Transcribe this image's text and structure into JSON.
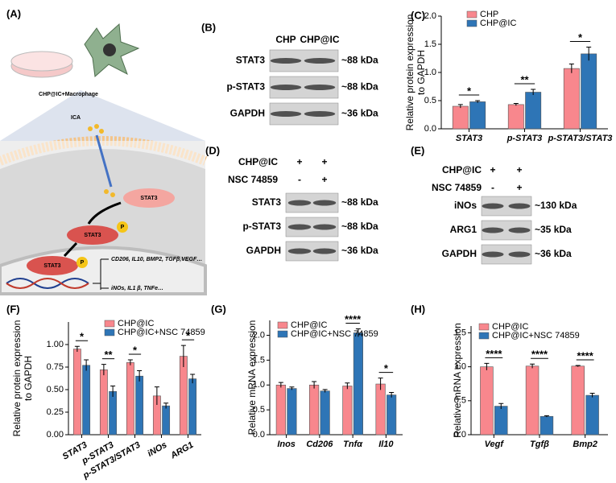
{
  "figure": {
    "panel_a": {
      "label": "(A)",
      "dish_label": "CHP@IC+Macrophage",
      "drug": "ICA",
      "protein": "STAT3",
      "phospho": "P",
      "upregulated": "CD206, IL10, BMP2, TGFβ,VEGF…",
      "downregulated": "iNOs, IL1 β, TNFe…"
    },
    "panel_b": {
      "label": "(B)",
      "lanes": [
        "CHP",
        "CHP@IC"
      ],
      "rows": [
        {
          "name": "STAT3",
          "size": "~88 kDa"
        },
        {
          "name": "p-STAT3",
          "size": "~88 kDa"
        },
        {
          "name": "GAPDH",
          "size": "~36 kDa"
        }
      ]
    },
    "panel_d": {
      "label": "(D)",
      "conditions": [
        {
          "name": "CHP@IC",
          "lanes": [
            "+",
            "+"
          ]
        },
        {
          "name": "NSC 74859",
          "lanes": [
            "-",
            "+"
          ]
        }
      ],
      "rows": [
        {
          "name": "STAT3",
          "size": "~88 kDa"
        },
        {
          "name": "p-STAT3",
          "size": "~88 kDa"
        },
        {
          "name": "GAPDH",
          "size": "~36 kDa"
        }
      ]
    },
    "panel_e": {
      "label": "(E)",
      "conditions": [
        {
          "name": "CHP@IC",
          "lanes": [
            "+",
            "+"
          ]
        },
        {
          "name": "NSC 74859",
          "lanes": [
            "-",
            "+"
          ]
        }
      ],
      "rows": [
        {
          "name": "iNOs",
          "size": "~130 kDa"
        },
        {
          "name": "ARG1",
          "size": "~35 kDa"
        },
        {
          "name": "GAPDH",
          "size": "~36 kDa"
        }
      ]
    }
  },
  "chart_data": [
    {
      "type": "bar",
      "panel": "(C)",
      "ylabel": [
        "Relative protein expression",
        "to GAPDH"
      ],
      "italic_categories": true,
      "rotated_categories": false,
      "categories": [
        "STAT3",
        "p-STAT3",
        "p-STAT3/STAT3"
      ],
      "series": [
        {
          "name": "CHP",
          "color": "#f8878d",
          "values": [
            0.4,
            0.43,
            1.07
          ],
          "errors": [
            0.03,
            0.02,
            0.08
          ]
        },
        {
          "name": "CHP@IC",
          "color": "#2e75b6",
          "values": [
            0.48,
            0.65,
            1.33
          ],
          "errors": [
            0.02,
            0.05,
            0.12
          ]
        }
      ],
      "ylim": [
        0,
        2.0
      ],
      "yticks": [
        {
          "value": 0,
          "label": "0.0"
        },
        {
          "value": 0.5,
          "label": "0.5"
        },
        {
          "value": 1.0,
          "label": "1.0"
        },
        {
          "value": 1.5,
          "label": "1.5"
        },
        {
          "value": 2.0,
          "label": "2.0"
        }
      ],
      "significance": [
        {
          "index": 0,
          "text": "*"
        },
        {
          "index": 1,
          "text": "**"
        },
        {
          "index": 2,
          "text": "*"
        }
      ]
    },
    {
      "type": "bar",
      "panel": "(F)",
      "ylabel": [
        "Relative protein expression",
        "to GAPDH"
      ],
      "italic_categories": true,
      "rotated_categories": true,
      "categories": [
        "STAT3",
        "p-STAT3",
        "p-STAT3/STAT3",
        "iNOs",
        "ARG1"
      ],
      "series": [
        {
          "name": "CHP@IC",
          "color": "#f8878d",
          "values": [
            0.95,
            0.72,
            0.8,
            0.43,
            0.87
          ],
          "errors": [
            0.03,
            0.06,
            0.03,
            0.1,
            0.12
          ]
        },
        {
          "name": "CHP@IC+NSC 74859",
          "color": "#2e75b6",
          "values": [
            0.77,
            0.48,
            0.65,
            0.32,
            0.62
          ],
          "errors": [
            0.06,
            0.06,
            0.06,
            0.03,
            0.05
          ]
        }
      ],
      "ylim": [
        0,
        1.25
      ],
      "yticks": [
        {
          "value": 0,
          "label": "0.00"
        },
        {
          "value": 0.25,
          "label": "0.25"
        },
        {
          "value": 0.5,
          "label": "0.50"
        },
        {
          "value": 0.75,
          "label": "0.75"
        },
        {
          "value": 1.0,
          "label": "1.00"
        }
      ],
      "significance": [
        {
          "index": 0,
          "text": "*"
        },
        {
          "index": 1,
          "text": "**"
        },
        {
          "index": 2,
          "text": "*"
        },
        {
          "index": 4,
          "text": "*"
        }
      ]
    },
    {
      "type": "bar",
      "panel": "(G)",
      "ylabel": [
        "Relative mRNA expression"
      ],
      "italic_categories": true,
      "rotated_categories": false,
      "categories": [
        "Inos",
        "Cd206",
        "Tnfα",
        "Il10"
      ],
      "series": [
        {
          "name": "CHP@IC",
          "color": "#f8878d",
          "values": [
            1.0,
            1.0,
            0.98,
            1.02
          ],
          "errors": [
            0.05,
            0.07,
            0.06,
            0.12
          ]
        },
        {
          "name": "CHP@IC+NSC 74859",
          "color": "#2e75b6",
          "values": [
            0.93,
            0.88,
            2.05,
            0.8
          ],
          "errors": [
            0.03,
            0.03,
            0.08,
            0.05
          ]
        }
      ],
      "ylim": [
        0,
        2.3
      ],
      "yticks": [
        {
          "value": 0,
          "label": "0.0"
        },
        {
          "value": 0.5,
          "label": "0.5"
        },
        {
          "value": 1.0,
          "label": "1.0"
        },
        {
          "value": 1.5,
          "label": "1.5"
        },
        {
          "value": 2.0,
          "label": "2.0"
        }
      ],
      "significance": [
        {
          "index": 2,
          "text": "****"
        },
        {
          "index": 3,
          "text": "*"
        }
      ]
    },
    {
      "type": "bar",
      "panel": "(H)",
      "ylabel": [
        "Relative mRNA expression"
      ],
      "italic_categories": true,
      "rotated_categories": false,
      "categories": [
        "Vegf",
        "Tgfβ",
        "Bmp2"
      ],
      "series": [
        {
          "name": "CHP@IC",
          "color": "#f8878d",
          "values": [
            1.0,
            1.01,
            1.01
          ],
          "errors": [
            0.05,
            0.03,
            0.01
          ]
        },
        {
          "name": "CHP@IC+NSC 74859",
          "color": "#2e75b6",
          "values": [
            0.42,
            0.27,
            0.58
          ],
          "errors": [
            0.04,
            0.01,
            0.03
          ]
        }
      ],
      "ylim": [
        0,
        1.6
      ],
      "yticks": [
        {
          "value": 0,
          "label": "0.0"
        },
        {
          "value": 0.5,
          "label": "0.5"
        },
        {
          "value": 1.0,
          "label": "1.0"
        },
        {
          "value": 1.5,
          "label": "1.5"
        }
      ],
      "significance": [
        {
          "index": 0,
          "text": "****"
        },
        {
          "index": 1,
          "text": "****"
        },
        {
          "index": 2,
          "text": "****"
        }
      ]
    }
  ]
}
